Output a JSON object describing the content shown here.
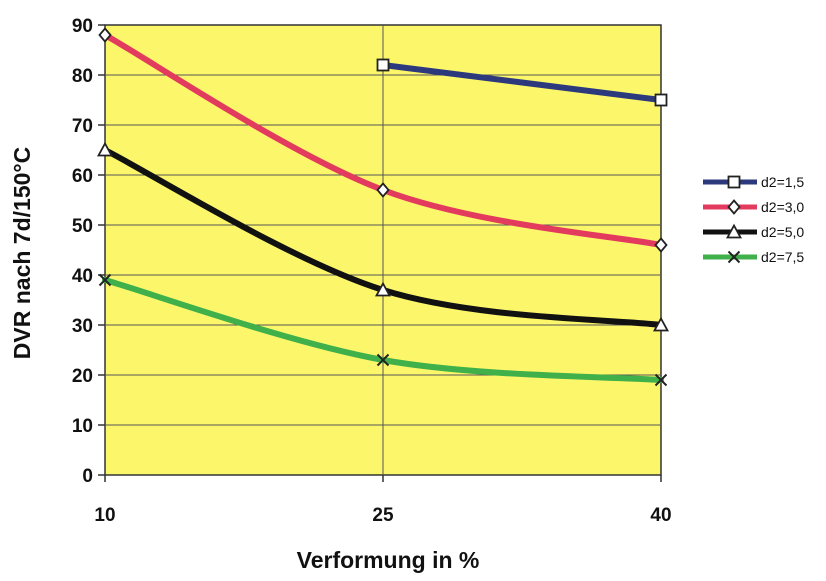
{
  "chart_data": {
    "type": "line",
    "title": "",
    "xlabel": "Verformung in %",
    "ylabel": "DVR nach 7d/150°C",
    "categories": [
      "10",
      "25",
      "40"
    ],
    "ylim": [
      0,
      90
    ],
    "yticks": [
      "0",
      "10",
      "20",
      "30",
      "40",
      "50",
      "60",
      "70",
      "80",
      "90"
    ],
    "grid": true,
    "legend_position": "right",
    "plot_background": "#fcf76a",
    "series": [
      {
        "name": "d2=1,5",
        "color": "#2c3a7d",
        "marker": "square",
        "values": [
          null,
          82,
          75
        ]
      },
      {
        "name": "d2=3,0",
        "color": "#e23b5d",
        "marker": "diamond",
        "values": [
          88,
          57,
          46
        ]
      },
      {
        "name": "d2=5,0",
        "color": "#111111",
        "marker": "triangle",
        "values": [
          65,
          37,
          30
        ]
      },
      {
        "name": "d2=7,5",
        "color": "#3fb04a",
        "marker": "x",
        "values": [
          39,
          23,
          19
        ]
      }
    ]
  }
}
